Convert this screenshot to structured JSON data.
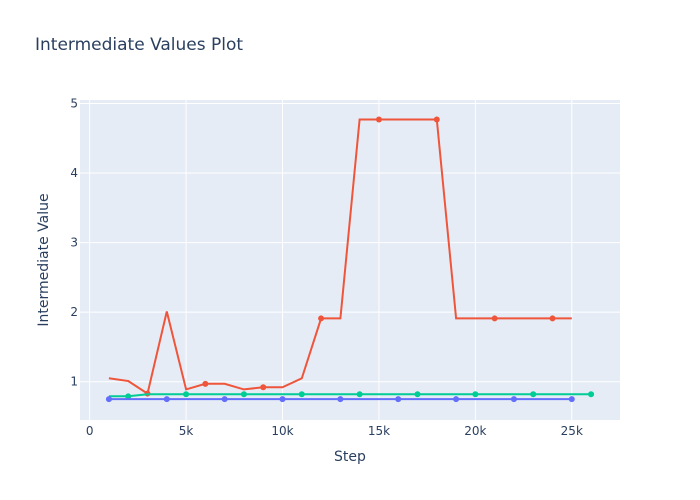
{
  "chart_data": {
    "type": "line",
    "title": "Intermediate Values Plot",
    "xlabel": "Step",
    "ylabel": "Intermediate Value",
    "xlim": [
      -500,
      27500
    ],
    "ylim": [
      0.45,
      5.05
    ],
    "x_ticks": [
      0,
      5000,
      10000,
      15000,
      20000,
      25000
    ],
    "x_tick_labels": [
      "0",
      "5k",
      "10k",
      "15k",
      "20k",
      "25k"
    ],
    "y_ticks": [
      1,
      2,
      3,
      4,
      5
    ],
    "y_tick_labels": [
      "1",
      "2",
      "3",
      "4",
      "5"
    ],
    "grid": true,
    "legend": false,
    "colors": {
      "plot_bg": "#e5ecf6",
      "grid": "#ffffff",
      "text": "#2a3f5f"
    },
    "series": [
      {
        "color": "#ef553b",
        "x": [
          1000,
          2000,
          3000,
          4000,
          5000,
          6000,
          7000,
          8000,
          9000,
          10000,
          11000,
          12000,
          13000,
          14000,
          15000,
          16000,
          17000,
          18000,
          19000,
          20000,
          21000,
          22000,
          23000,
          24000,
          25000
        ],
        "y": [
          1.05,
          1.01,
          0.83,
          2.01,
          0.89,
          0.97,
          0.97,
          0.89,
          0.92,
          0.92,
          1.05,
          1.91,
          1.91,
          4.77,
          4.77,
          4.77,
          4.77,
          4.77,
          1.91,
          1.91,
          1.91,
          1.91,
          1.91,
          1.91,
          1.91
        ],
        "markers_x": [
          3000,
          6000,
          9000,
          12000,
          15000,
          18000,
          21000,
          24000
        ],
        "markers_y": [
          0.83,
          0.97,
          0.92,
          1.91,
          4.77,
          4.77,
          1.91,
          1.91
        ]
      },
      {
        "color": "#00cc96",
        "x": [
          1000,
          2000,
          3000,
          4000,
          5000,
          6000,
          7000,
          8000,
          9000,
          10000,
          11000,
          12000,
          13000,
          14000,
          15000,
          16000,
          17000,
          18000,
          19000,
          20000,
          21000,
          22000,
          23000,
          24000,
          25000,
          26000
        ],
        "y": [
          0.79,
          0.79,
          0.82,
          0.82,
          0.82,
          0.82,
          0.82,
          0.82,
          0.82,
          0.82,
          0.82,
          0.82,
          0.82,
          0.82,
          0.82,
          0.82,
          0.82,
          0.82,
          0.82,
          0.82,
          0.82,
          0.82,
          0.82,
          0.82,
          0.82,
          0.82
        ],
        "markers_x": [
          2000,
          5000,
          8000,
          11000,
          14000,
          17000,
          20000,
          23000,
          26000
        ],
        "markers_y": [
          0.79,
          0.82,
          0.82,
          0.82,
          0.82,
          0.82,
          0.82,
          0.82,
          0.82
        ]
      },
      {
        "color": "#636efa",
        "x": [
          1000,
          25000
        ],
        "y": [
          0.75,
          0.75
        ],
        "markers_x": [
          1000,
          4000,
          7000,
          10000,
          13000,
          16000,
          19000,
          22000,
          25000
        ],
        "markers_y": [
          0.75,
          0.75,
          0.75,
          0.75,
          0.75,
          0.75,
          0.75,
          0.75,
          0.75
        ]
      }
    ]
  }
}
